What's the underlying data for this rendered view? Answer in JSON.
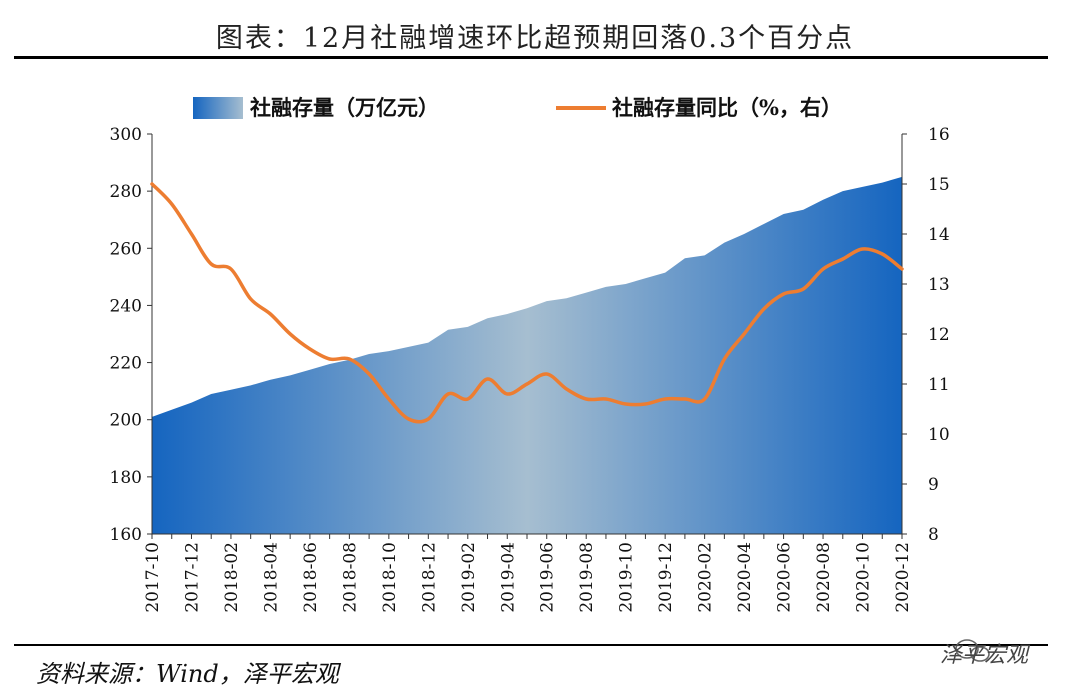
{
  "title": "图表：12月社融增速环比超预期回落0.3个百分点",
  "source": "资料来源：Wind，泽平宏观",
  "watermark": "泽平宏观",
  "chart_data": {
    "type": "area",
    "categories": [
      "2017-10",
      "2017-11",
      "2017-12",
      "2018-01",
      "2018-02",
      "2018-03",
      "2018-04",
      "2018-05",
      "2018-06",
      "2018-07",
      "2018-08",
      "2018-09",
      "2018-10",
      "2018-11",
      "2018-12",
      "2019-01",
      "2019-02",
      "2019-03",
      "2019-04",
      "2019-05",
      "2019-06",
      "2019-07",
      "2019-08",
      "2019-09",
      "2019-10",
      "2019-11",
      "2019-12",
      "2020-01",
      "2020-02",
      "2020-03",
      "2020-04",
      "2020-05",
      "2020-06",
      "2020-07",
      "2020-08",
      "2020-09",
      "2020-10",
      "2020-11",
      "2020-12"
    ],
    "xtick_labels": [
      "2017-10",
      "2017-12",
      "2018-02",
      "2018-04",
      "2018-06",
      "2018-08",
      "2018-10",
      "2018-12",
      "2019-02",
      "2019-04",
      "2019-06",
      "2019-08",
      "2019-10",
      "2019-12",
      "2020-02",
      "2020-04",
      "2020-06",
      "2020-08",
      "2020-10",
      "2020-12"
    ],
    "series": [
      {
        "name": "社融存量（万亿元）",
        "axis": "left",
        "kind": "area",
        "values": [
          201,
          203.5,
          206,
          209,
          210.5,
          212,
          214,
          215.5,
          217.5,
          219.5,
          221,
          223,
          224,
          225.5,
          227,
          231.5,
          232.5,
          235.5,
          237,
          239,
          241.5,
          242.5,
          244.5,
          246.5,
          247.5,
          249.5,
          251.5,
          256.5,
          257.5,
          262,
          265,
          268.5,
          272,
          273.5,
          277,
          280,
          281.5,
          283,
          285
        ]
      },
      {
        "name": "社融存量同比（%，右）",
        "axis": "right",
        "kind": "line",
        "color": "#ED7D31",
        "values": [
          15.0,
          14.6,
          14.0,
          13.4,
          13.3,
          12.7,
          12.4,
          12.0,
          11.7,
          11.5,
          11.5,
          11.2,
          10.7,
          10.3,
          10.3,
          10.8,
          10.7,
          11.1,
          10.8,
          11.0,
          11.2,
          10.9,
          10.7,
          10.7,
          10.6,
          10.6,
          10.7,
          10.7,
          10.7,
          11.5,
          12.0,
          12.5,
          12.8,
          12.9,
          13.3,
          13.5,
          13.7,
          13.6,
          13.3
        ]
      }
    ],
    "y_left": {
      "min": 160,
      "max": 300,
      "ticks": [
        160,
        180,
        200,
        220,
        240,
        260,
        280,
        300
      ]
    },
    "y_right": {
      "min": 8,
      "max": 16,
      "ticks": [
        8,
        9,
        10,
        11,
        12,
        13,
        14,
        15,
        16
      ]
    },
    "legend_position": "top",
    "grid": false,
    "colors": {
      "area_edge": "#1565C0",
      "area_mid": "#A6BED0",
      "line": "#ED7D31"
    }
  }
}
